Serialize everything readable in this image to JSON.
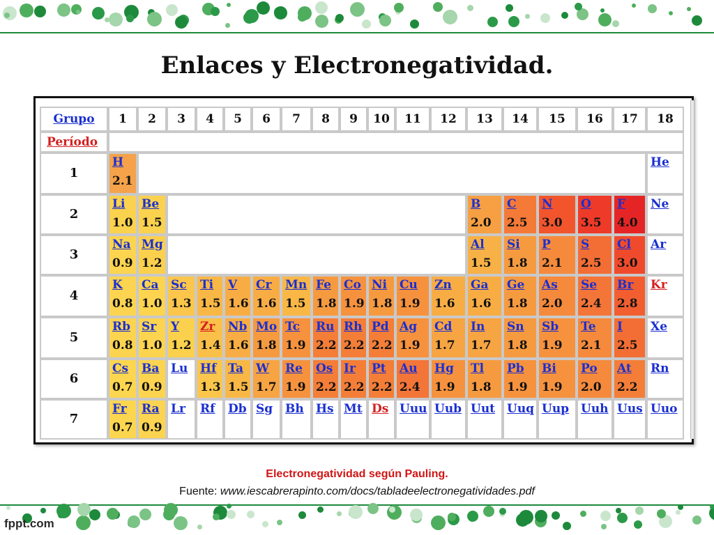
{
  "slide": {
    "title": "Enlaces y Electronegatividad.",
    "caption": "Electronegatividad según Pauling.",
    "source_label": "Fuente:",
    "source_url": "www.iescabrerapinto.com/docs/tabladeelectronegatividades.pdf",
    "logo": "fppt.com"
  },
  "table": {
    "group_label": "Grupo",
    "period_label": "Período",
    "groups": [
      "1",
      "2",
      "3",
      "4",
      "5",
      "6",
      "7",
      "8",
      "9",
      "10",
      "11",
      "12",
      "13",
      "14",
      "15",
      "16",
      "17",
      "18"
    ],
    "periods": [
      "1",
      "2",
      "3",
      "4",
      "5",
      "6",
      "7"
    ],
    "elements": [
      {
        "sym": "H",
        "en": "2.1",
        "period": 1,
        "group": 1,
        "color": "#f5a24a"
      },
      {
        "sym": "He",
        "en": "",
        "period": 1,
        "group": 18,
        "color": "#ffffff"
      },
      {
        "sym": "Li",
        "en": "1.0",
        "period": 2,
        "group": 1,
        "color": "#fbd24e"
      },
      {
        "sym": "Be",
        "en": "1.5",
        "period": 2,
        "group": 2,
        "color": "#fbd24e"
      },
      {
        "sym": "B",
        "en": "2.0",
        "period": 2,
        "group": 13,
        "color": "#f7a043"
      },
      {
        "sym": "C",
        "en": "2.5",
        "period": 2,
        "group": 14,
        "color": "#f57a37"
      },
      {
        "sym": "N",
        "en": "3.0",
        "period": 2,
        "group": 15,
        "color": "#f2552c"
      },
      {
        "sym": "O",
        "en": "3.5",
        "period": 2,
        "group": 16,
        "color": "#ee3a28"
      },
      {
        "sym": "F",
        "en": "4.0",
        "period": 2,
        "group": 17,
        "color": "#e52525"
      },
      {
        "sym": "Ne",
        "en": "",
        "period": 2,
        "group": 18,
        "color": "#ffffff"
      },
      {
        "sym": "Na",
        "en": "0.9",
        "period": 3,
        "group": 1,
        "color": "#fcd44f"
      },
      {
        "sym": "Mg",
        "en": "1.2",
        "period": 3,
        "group": 2,
        "color": "#fbd04d"
      },
      {
        "sym": "Al",
        "en": "1.5",
        "period": 3,
        "group": 13,
        "color": "#f7b146"
      },
      {
        "sym": "Si",
        "en": "1.8",
        "period": 3,
        "group": 14,
        "color": "#f69a40"
      },
      {
        "sym": "P",
        "en": "2.1",
        "period": 3,
        "group": 15,
        "color": "#f58a3c"
      },
      {
        "sym": "S",
        "en": "2.5",
        "period": 3,
        "group": 16,
        "color": "#f36e34"
      },
      {
        "sym": "Cl",
        "en": "3.0",
        "period": 3,
        "group": 17,
        "color": "#f04a2c"
      },
      {
        "sym": "Ar",
        "en": "",
        "period": 3,
        "group": 18,
        "color": "#ffffff"
      },
      {
        "sym": "K",
        "en": "0.8",
        "period": 4,
        "group": 1,
        "color": "#fcd44f"
      },
      {
        "sym": "Ca",
        "en": "1.0",
        "period": 4,
        "group": 2,
        "color": "#fcd44f"
      },
      {
        "sym": "Sc",
        "en": "1.3",
        "period": 4,
        "group": 3,
        "color": "#fbc64b"
      },
      {
        "sym": "Ti",
        "en": "1.5",
        "period": 4,
        "group": 4,
        "color": "#f9b846"
      },
      {
        "sym": "V",
        "en": "1.6",
        "period": 4,
        "group": 5,
        "color": "#f8ad44"
      },
      {
        "sym": "Cr",
        "en": "1.6",
        "period": 4,
        "group": 6,
        "color": "#f8ad44"
      },
      {
        "sym": "Mn",
        "en": "1.5",
        "period": 4,
        "group": 7,
        "color": "#f9b846"
      },
      {
        "sym": "Fe",
        "en": "1.8",
        "period": 4,
        "group": 8,
        "color": "#f69a40"
      },
      {
        "sym": "Co",
        "en": "1.9",
        "period": 4,
        "group": 9,
        "color": "#f6923e"
      },
      {
        "sym": "Ni",
        "en": "1.8",
        "period": 4,
        "group": 10,
        "color": "#f69a40"
      },
      {
        "sym": "Cu",
        "en": "1.9",
        "period": 4,
        "group": 11,
        "color": "#f6923e"
      },
      {
        "sym": "Zn",
        "en": "1.6",
        "period": 4,
        "group": 12,
        "color": "#f8ad44"
      },
      {
        "sym": "Ga",
        "en": "1.6",
        "period": 4,
        "group": 13,
        "color": "#f8ad44"
      },
      {
        "sym": "Ge",
        "en": "1.8",
        "period": 4,
        "group": 14,
        "color": "#f69a40"
      },
      {
        "sym": "As",
        "en": "2.0",
        "period": 4,
        "group": 15,
        "color": "#f58a3c"
      },
      {
        "sym": "Se",
        "en": "2.4",
        "period": 4,
        "group": 16,
        "color": "#f47538"
      },
      {
        "sym": "Br",
        "en": "2.8",
        "period": 4,
        "group": 17,
        "color": "#f25e30"
      },
      {
        "sym": "Kr",
        "en": "",
        "period": 4,
        "group": 18,
        "color": "#ffffff",
        "sym_color": "#d42020"
      },
      {
        "sym": "Rb",
        "en": "0.8",
        "period": 5,
        "group": 1,
        "color": "#fcd44f"
      },
      {
        "sym": "Sr",
        "en": "1.0",
        "period": 5,
        "group": 2,
        "color": "#fcd44f"
      },
      {
        "sym": "Y",
        "en": "1.2",
        "period": 5,
        "group": 3,
        "color": "#fbd04d"
      },
      {
        "sym": "Zr",
        "en": "1.4",
        "period": 5,
        "group": 4,
        "color": "#fac049",
        "sym_color": "#d42020"
      },
      {
        "sym": "Nb",
        "en": "1.6",
        "period": 5,
        "group": 5,
        "color": "#f8ad44"
      },
      {
        "sym": "Mo",
        "en": "1.8",
        "period": 5,
        "group": 6,
        "color": "#f69a40"
      },
      {
        "sym": "Tc",
        "en": "1.9",
        "period": 5,
        "group": 7,
        "color": "#f6923e"
      },
      {
        "sym": "Ru",
        "en": "2.2",
        "period": 5,
        "group": 8,
        "color": "#f47e38"
      },
      {
        "sym": "Rh",
        "en": "2.2",
        "period": 5,
        "group": 9,
        "color": "#f47e38"
      },
      {
        "sym": "Pd",
        "en": "2.2",
        "period": 5,
        "group": 10,
        "color": "#f47e38"
      },
      {
        "sym": "Ag",
        "en": "1.9",
        "period": 5,
        "group": 11,
        "color": "#f6923e"
      },
      {
        "sym": "Cd",
        "en": "1.7",
        "period": 5,
        "group": 12,
        "color": "#f7a443"
      },
      {
        "sym": "In",
        "en": "1.7",
        "period": 5,
        "group": 13,
        "color": "#f7a443"
      },
      {
        "sym": "Sn",
        "en": "1.8",
        "period": 5,
        "group": 14,
        "color": "#f69a40"
      },
      {
        "sym": "Sb",
        "en": "1.9",
        "period": 5,
        "group": 15,
        "color": "#f6923e"
      },
      {
        "sym": "Te",
        "en": "2.1",
        "period": 5,
        "group": 16,
        "color": "#f58a3c"
      },
      {
        "sym": "I",
        "en": "2.5",
        "period": 5,
        "group": 17,
        "color": "#f36e34"
      },
      {
        "sym": "Xe",
        "en": "",
        "period": 5,
        "group": 18,
        "color": "#ffffff"
      },
      {
        "sym": "Cs",
        "en": "0.7",
        "period": 6,
        "group": 1,
        "color": "#fcd64f"
      },
      {
        "sym": "Ba",
        "en": "0.9",
        "period": 6,
        "group": 2,
        "color": "#fcd44f"
      },
      {
        "sym": "Lu",
        "en": "",
        "period": 6,
        "group": 3,
        "color": "#ffffff"
      },
      {
        "sym": "Hf",
        "en": "1.3",
        "period": 6,
        "group": 4,
        "color": "#fbc64b"
      },
      {
        "sym": "Ta",
        "en": "1.5",
        "period": 6,
        "group": 5,
        "color": "#f9b846"
      },
      {
        "sym": "W",
        "en": "1.7",
        "period": 6,
        "group": 6,
        "color": "#f7a443"
      },
      {
        "sym": "Re",
        "en": "1.9",
        "period": 6,
        "group": 7,
        "color": "#f6923e"
      },
      {
        "sym": "Os",
        "en": "2.2",
        "period": 6,
        "group": 8,
        "color": "#f47e38"
      },
      {
        "sym": "Ir",
        "en": "2.2",
        "period": 6,
        "group": 9,
        "color": "#f47e38"
      },
      {
        "sym": "Pt",
        "en": "2.2",
        "period": 6,
        "group": 10,
        "color": "#f47e38"
      },
      {
        "sym": "Au",
        "en": "2.4",
        "period": 6,
        "group": 11,
        "color": "#f47538"
      },
      {
        "sym": "Hg",
        "en": "1.9",
        "period": 6,
        "group": 12,
        "color": "#f6923e"
      },
      {
        "sym": "Tl",
        "en": "1.8",
        "period": 6,
        "group": 13,
        "color": "#f69a40"
      },
      {
        "sym": "Pb",
        "en": "1.9",
        "period": 6,
        "group": 14,
        "color": "#f6923e"
      },
      {
        "sym": "Bi",
        "en": "1.9",
        "period": 6,
        "group": 15,
        "color": "#f6923e"
      },
      {
        "sym": "Po",
        "en": "2.0",
        "period": 6,
        "group": 16,
        "color": "#f58a3c"
      },
      {
        "sym": "At",
        "en": "2.2",
        "period": 6,
        "group": 17,
        "color": "#f47e38"
      },
      {
        "sym": "Rn",
        "en": "",
        "period": 6,
        "group": 18,
        "color": "#ffffff"
      },
      {
        "sym": "Fr",
        "en": "0.7",
        "period": 7,
        "group": 1,
        "color": "#fcd64f"
      },
      {
        "sym": "Ra",
        "en": "0.9",
        "period": 7,
        "group": 2,
        "color": "#fcd44f"
      },
      {
        "sym": "Lr",
        "en": "",
        "period": 7,
        "group": 3,
        "color": "#ffffff"
      },
      {
        "sym": "Rf",
        "en": "",
        "period": 7,
        "group": 4,
        "color": "#ffffff"
      },
      {
        "sym": "Db",
        "en": "",
        "period": 7,
        "group": 5,
        "color": "#ffffff"
      },
      {
        "sym": "Sg",
        "en": "",
        "period": 7,
        "group": 6,
        "color": "#ffffff"
      },
      {
        "sym": "Bh",
        "en": "",
        "period": 7,
        "group": 7,
        "color": "#ffffff"
      },
      {
        "sym": "Hs",
        "en": "",
        "period": 7,
        "group": 8,
        "color": "#ffffff"
      },
      {
        "sym": "Mt",
        "en": "",
        "period": 7,
        "group": 9,
        "color": "#ffffff"
      },
      {
        "sym": "Ds",
        "en": "",
        "period": 7,
        "group": 10,
        "color": "#ffffff",
        "sym_color": "#d42020"
      },
      {
        "sym": "Uuu",
        "en": "",
        "period": 7,
        "group": 11,
        "color": "#ffffff"
      },
      {
        "sym": "Uub",
        "en": "",
        "period": 7,
        "group": 12,
        "color": "#ffffff"
      },
      {
        "sym": "Uut",
        "en": "",
        "period": 7,
        "group": 13,
        "color": "#ffffff"
      },
      {
        "sym": "Uuq",
        "en": "",
        "period": 7,
        "group": 14,
        "color": "#ffffff"
      },
      {
        "sym": "Uup",
        "en": "",
        "period": 7,
        "group": 15,
        "color": "#ffffff"
      },
      {
        "sym": "Uuh",
        "en": "",
        "period": 7,
        "group": 16,
        "color": "#ffffff"
      },
      {
        "sym": "Uus",
        "en": "",
        "period": 7,
        "group": 17,
        "color": "#ffffff"
      },
      {
        "sym": "Uuo",
        "en": "",
        "period": 7,
        "group": 18,
        "color": "#ffffff"
      }
    ]
  },
  "colors": {
    "brand_green": "#1d8a3b",
    "link_blue": "#1a2fd0",
    "link_red": "#d42020",
    "caption_red": "#d01515"
  }
}
